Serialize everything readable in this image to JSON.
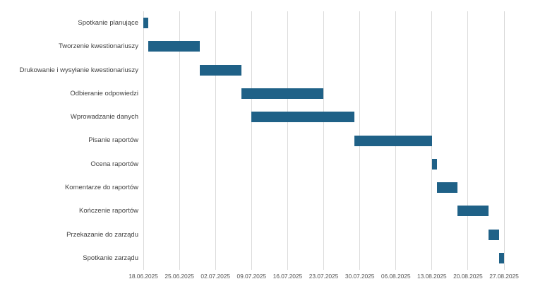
{
  "chart_data": {
    "type": "bar",
    "subtype": "gantt",
    "title": "",
    "xlabel": "",
    "ylabel": "",
    "grid": true,
    "legend": false,
    "axis_range_days": [
      0,
      70
    ],
    "axis_start_date": "18.06.2025",
    "axis_end_date": "27.08.2025",
    "bar_color": "#1F6187",
    "gridline_color": "#D9D9D9",
    "task_label_color": "#3F3F3F",
    "tick_label_color": "#595959",
    "background_color": "#FFFFFF",
    "x_ticks": [
      {
        "label": "18.06.2025",
        "day": 0
      },
      {
        "label": "25.06.2025",
        "day": 7
      },
      {
        "label": "02.07.2025",
        "day": 14
      },
      {
        "label": "09.07.2025",
        "day": 21
      },
      {
        "label": "16.07.2025",
        "day": 28
      },
      {
        "label": "23.07.2025",
        "day": 35
      },
      {
        "label": "30.07.2025",
        "day": 42
      },
      {
        "label": "06.08.2025",
        "day": 49
      },
      {
        "label": "13.08.2025",
        "day": 56
      },
      {
        "label": "20.08.2025",
        "day": 63
      },
      {
        "label": "27.08.2025",
        "day": 70
      }
    ],
    "tasks": [
      {
        "label": "Spotkanie planujące",
        "start": "18.06.2025",
        "end": "19.06.2025",
        "start_day": 0,
        "duration_days": 1
      },
      {
        "label": "Tworzenie kwestionariuszy",
        "start": "19.06.2025",
        "end": "29.06.2025",
        "start_day": 1,
        "duration_days": 10
      },
      {
        "label": "Drukowanie i wysyłanie kwestionariuszy",
        "start": "29.06.2025",
        "end": "07.07.2025",
        "start_day": 11,
        "duration_days": 8
      },
      {
        "label": "Odbieranie odpowiedzi",
        "start": "07.07.2025",
        "end": "23.07.2025",
        "start_day": 19,
        "duration_days": 16
      },
      {
        "label": "Wprowadzanie danych",
        "start": "09.07.2025",
        "end": "29.07.2025",
        "start_day": 21,
        "duration_days": 20
      },
      {
        "label": "Pisanie raportów",
        "start": "29.07.2025",
        "end": "13.08.2025",
        "start_day": 41,
        "duration_days": 15
      },
      {
        "label": "Ocena raportów",
        "start": "13.08.2025",
        "end": "14.08.2025",
        "start_day": 56,
        "duration_days": 1
      },
      {
        "label": "Komentarze do raportów",
        "start": "14.08.2025",
        "end": "18.08.2025",
        "start_day": 57,
        "duration_days": 4
      },
      {
        "label": "Kończenie raportów",
        "start": "18.08.2025",
        "end": "24.08.2025",
        "start_day": 61,
        "duration_days": 6
      },
      {
        "label": "Przekazanie do zarządu",
        "start": "24.08.2025",
        "end": "26.08.2025",
        "start_day": 67,
        "duration_days": 2
      },
      {
        "label": "Spotkanie zarządu",
        "start": "26.08.2025",
        "end": "27.08.2025",
        "start_day": 69,
        "duration_days": 1
      }
    ]
  }
}
